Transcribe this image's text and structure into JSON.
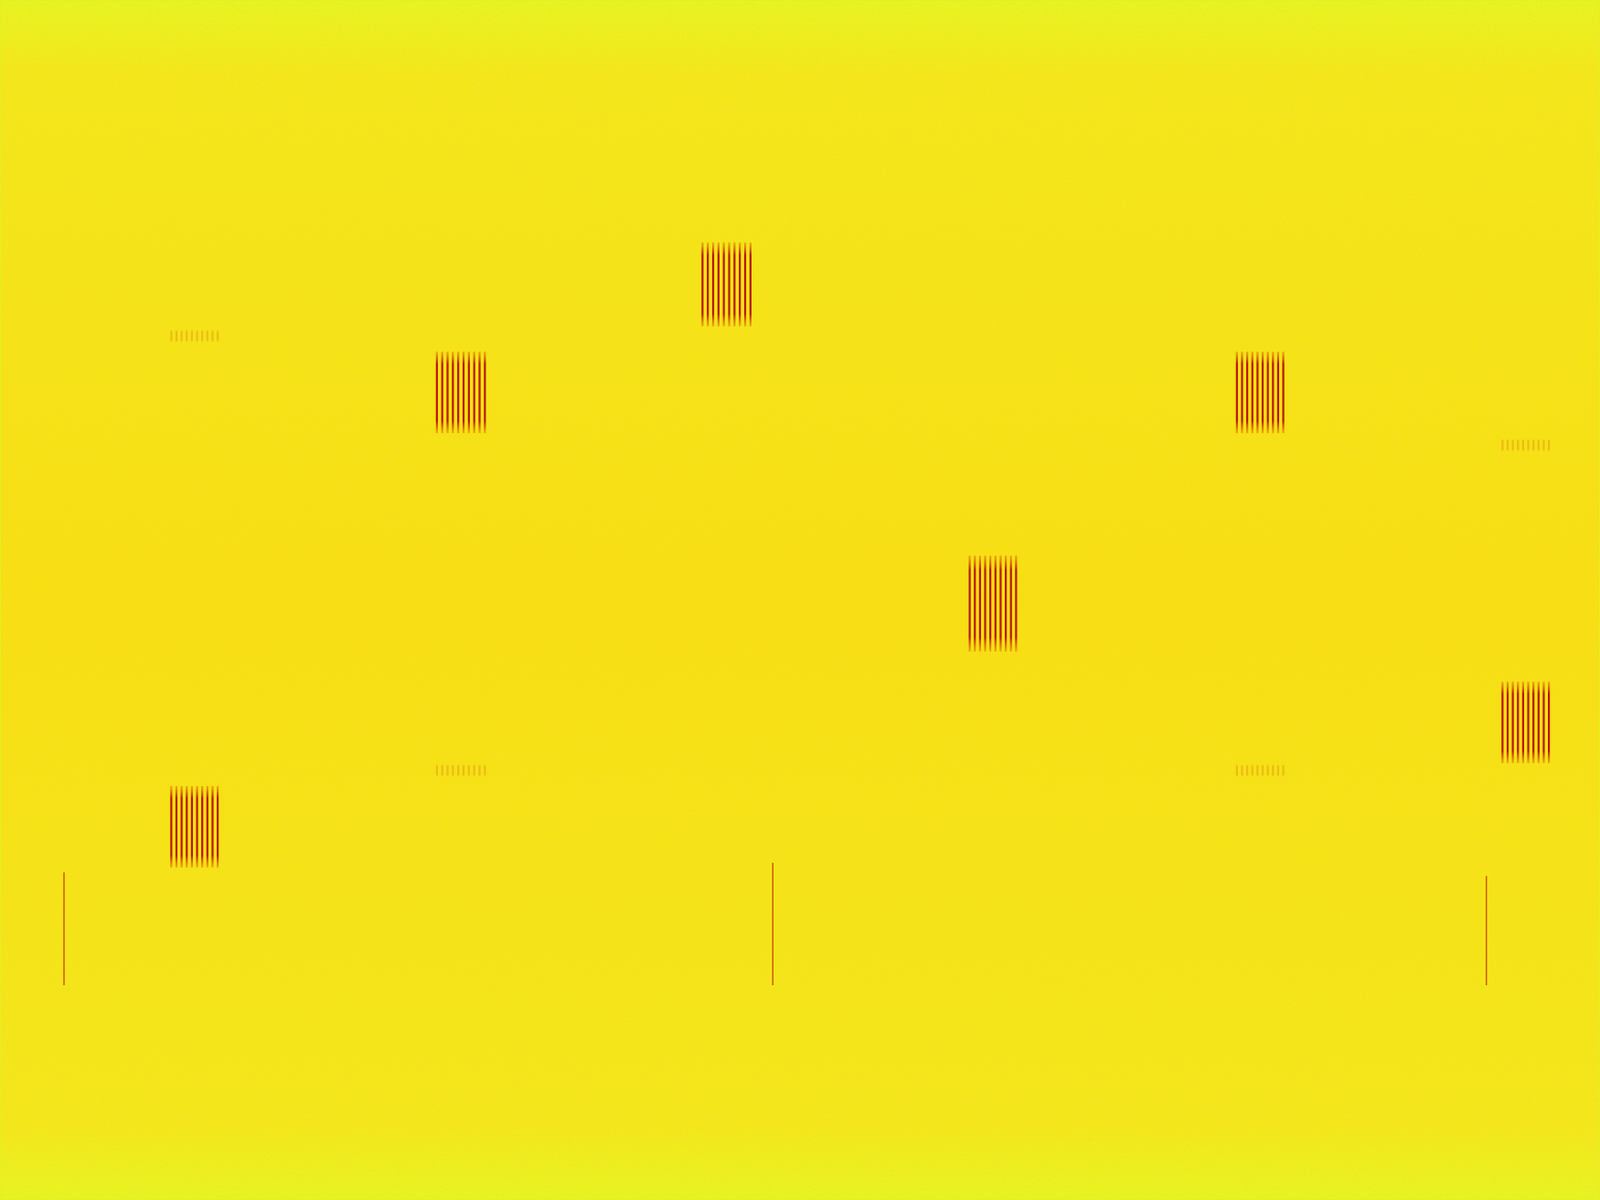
{
  "chart_data": {
    "type": "spectrogram",
    "xlim": [
      0,
      100
    ],
    "ylim": [
      0,
      100
    ],
    "tick_labels": false,
    "carrier": 50.3,
    "bursts": [
      {
        "x": [
          10.7,
          13.6
        ],
        "y": [
          27.7,
          34.5
        ]
      },
      {
        "x": [
          27.3,
          30.3
        ],
        "y": [
          63.9,
          70.7
        ]
      },
      {
        "x": [
          43.9,
          46.9
        ],
        "y": [
          72.8,
          79.8
        ]
      },
      {
        "x": [
          60.6,
          63.5
        ],
        "y": [
          45.7,
          53.7
        ]
      },
      {
        "x": [
          77.3,
          80.2
        ],
        "y": [
          63.9,
          70.7
        ]
      },
      {
        "x": [
          93.9,
          96.8
        ],
        "y": [
          36.4,
          43.2
        ]
      }
    ],
    "faint_bursts": [
      {
        "x": [
          10.7,
          13.6
        ],
        "y": [
          71.5,
          72.5
        ]
      },
      {
        "x": [
          27.3,
          30.3
        ],
        "y": [
          35.3,
          36.3
        ]
      },
      {
        "x": [
          77.3,
          80.2
        ],
        "y": [
          35.3,
          36.3
        ]
      },
      {
        "x": [
          93.9,
          96.8
        ],
        "y": [
          62.4,
          63.4
        ]
      }
    ],
    "impulses": [
      {
        "x": 4.0,
        "y": [
          17.9,
          27.3
        ]
      },
      {
        "x": 48.3,
        "y": [
          17.9,
          28.1
        ]
      },
      {
        "x": 92.9,
        "y": [
          17.9,
          27.0
        ]
      }
    ]
  }
}
